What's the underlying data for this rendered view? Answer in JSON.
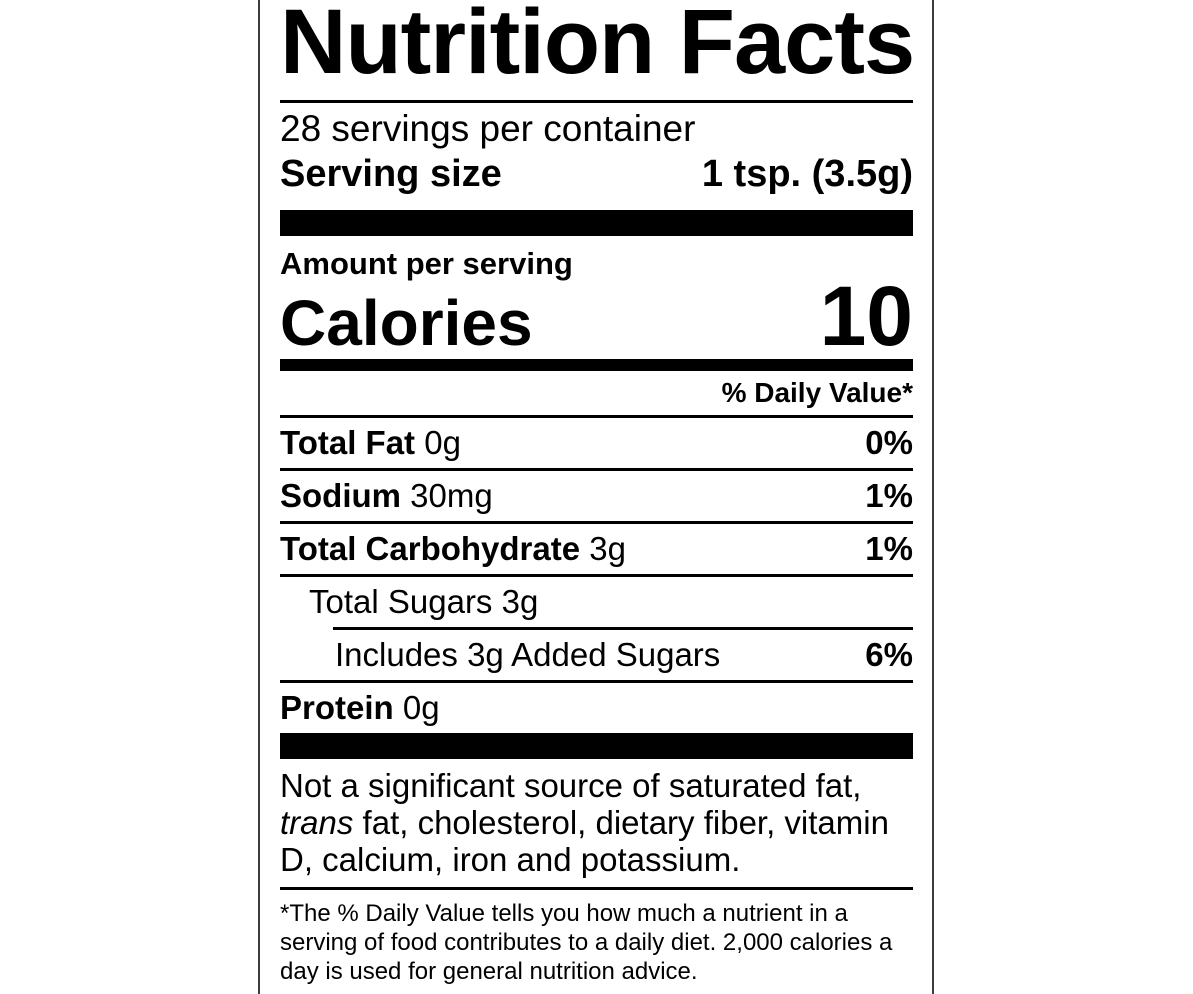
{
  "nutrition_label": {
    "title": "Nutrition Facts",
    "servings_per_container": "28 servings per container",
    "serving_size": {
      "label": "Serving size",
      "value": "1 tsp. (3.5g)"
    },
    "amount_per_serving": "Amount per serving",
    "calories": {
      "label": "Calories",
      "value": "10"
    },
    "daily_value_header": "% Daily Value*",
    "nutrients": [
      {
        "bold": "Total Fat",
        "rest": "0g",
        "dv": "0%"
      },
      {
        "bold": "Sodium",
        "rest": "30mg",
        "dv": "1%"
      },
      {
        "bold": "Total Carbohydrate",
        "rest": "3g",
        "dv": "1%"
      },
      {
        "bold": "",
        "rest": "Total Sugars 3g",
        "dv": ""
      },
      {
        "bold": "",
        "rest": "Includes 3g Added Sugars",
        "dv": "6%"
      },
      {
        "bold": "Protein",
        "rest": "0g",
        "dv": ""
      }
    ],
    "insignificant_note": {
      "prefix": "Not a significant source of saturated fat,",
      "italic": "trans",
      "suffix": "fat, cholesterol, dietary fiber, vitamin D, calcium, iron and potassium."
    },
    "footnote": "*The % Daily Value tells you how much a nutrient in a serving of food contributes to a daily diet. 2,000 calories a day is used for general nutrition advice.",
    "colors": {
      "text": "#000000",
      "background": "#ffffff",
      "border": "#3c3c3c"
    }
  }
}
